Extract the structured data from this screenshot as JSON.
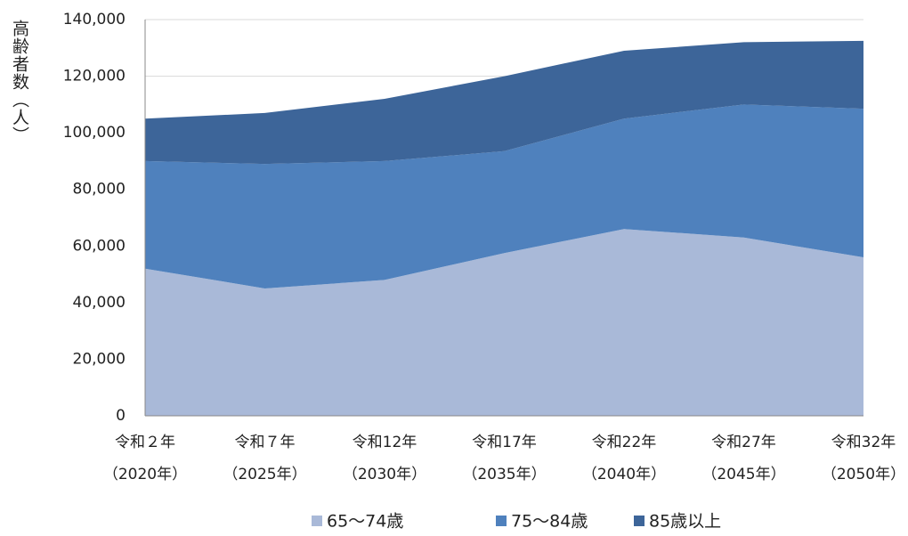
{
  "chart_data": {
    "type": "stacked_area",
    "y_label": "高齢者数（人）",
    "categories": [
      [
        "令和２年",
        "（2020年）"
      ],
      [
        "令和７年",
        "（2025年）"
      ],
      [
        "令和12年",
        "（2030年）"
      ],
      [
        "令和17年",
        "（2035年）"
      ],
      [
        "令和22年",
        "（2040年）"
      ],
      [
        "令和27年",
        "（2045年）"
      ],
      [
        "令和32年",
        "（2050年）"
      ]
    ],
    "series": [
      {
        "name": "65～74歳",
        "color": "#a9b9d8",
        "values": [
          52000,
          45000,
          48000,
          57500,
          66000,
          63000,
          56000
        ]
      },
      {
        "name": "75～84歳",
        "color": "#4f81bd",
        "values": [
          38000,
          44000,
          42000,
          36000,
          39000,
          47000,
          52500
        ]
      },
      {
        "name": "85歳以上",
        "color": "#3d6599",
        "values": [
          15000,
          18000,
          22000,
          26500,
          24000,
          22000,
          24000
        ]
      }
    ],
    "ylim": [
      0,
      140000
    ],
    "yticks": [
      0,
      {
        "value": 20000,
        "label": "20,000"
      },
      {
        "value": 40000,
        "label": "40,000"
      },
      {
        "value": 60000,
        "label": "60,000"
      },
      {
        "value": 80000,
        "label": "80,000"
      },
      {
        "value": 100000,
        "label": "100,000"
      },
      {
        "value": 120000,
        "label": "120,000"
      },
      {
        "value": 140000,
        "label": "140,000"
      }
    ],
    "grid": true,
    "legend": "bottom"
  }
}
